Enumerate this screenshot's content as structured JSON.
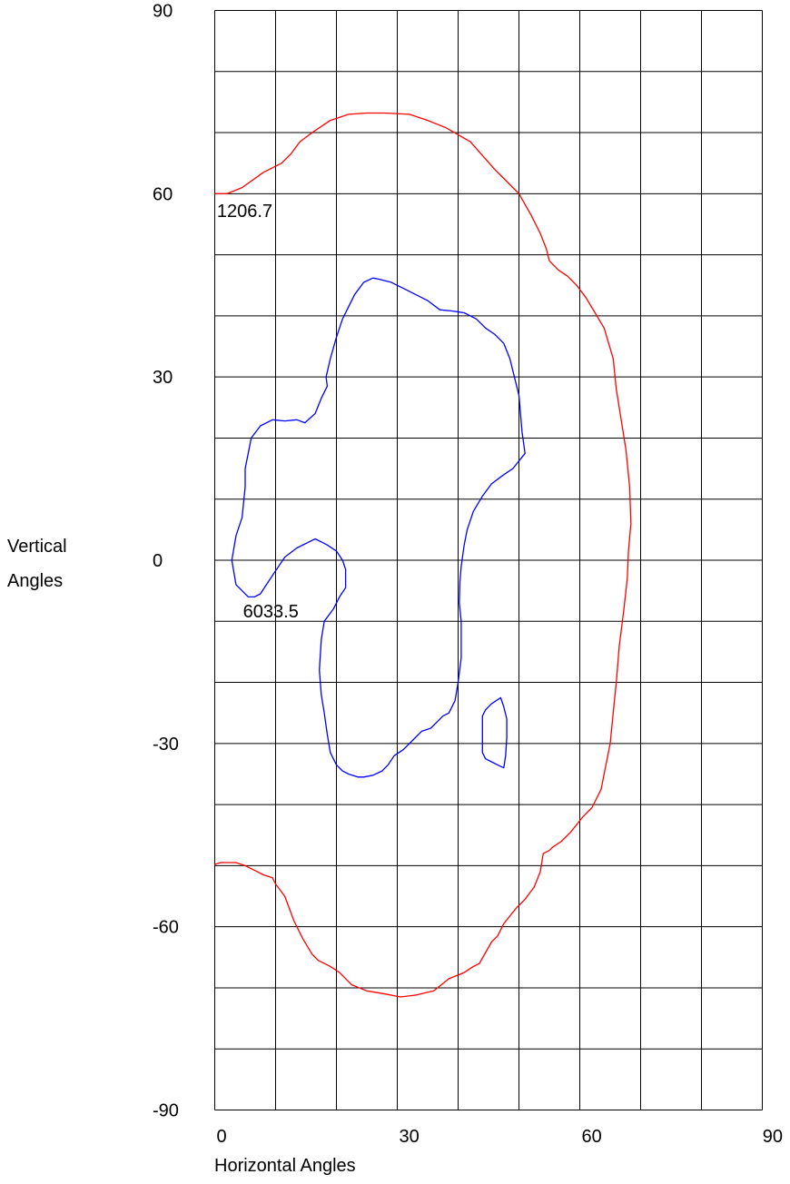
{
  "chart_data": {
    "type": "contour",
    "title": "",
    "xlabel": "Horizontal Angles",
    "ylabel_lines": [
      "Vertical",
      "Angles"
    ],
    "xlim": [
      0,
      90
    ],
    "ylim": [
      -90,
      90
    ],
    "x_ticks": [
      0,
      30,
      60,
      90
    ],
    "y_ticks": [
      90,
      60,
      30,
      0,
      -30,
      -60,
      -90
    ],
    "grid": {
      "on": true,
      "x_step": 10,
      "y_step": 10
    },
    "colors": {
      "grid": "#000000",
      "text": "#000000"
    },
    "series": [
      {
        "label": "1206.7",
        "color": "#ff0000",
        "label_at": [
          0.2,
          57.5
        ],
        "points": [
          [
            0.0,
            60.0
          ],
          [
            2.0,
            60.0
          ],
          [
            4.5,
            61.0
          ],
          [
            8.0,
            63.5
          ],
          [
            11.0,
            65.0
          ],
          [
            12.5,
            66.5
          ],
          [
            14.0,
            68.5
          ],
          [
            16.0,
            70.0
          ],
          [
            19.0,
            72.0
          ],
          [
            22.0,
            73.0
          ],
          [
            25.0,
            73.2
          ],
          [
            28.0,
            73.2
          ],
          [
            32.0,
            73.0
          ],
          [
            35.0,
            72.0
          ],
          [
            38.0,
            70.8
          ],
          [
            42.0,
            68.5
          ],
          [
            46.0,
            64.0
          ],
          [
            47.5,
            62.5
          ],
          [
            50.0,
            60.0
          ],
          [
            52.0,
            56.5
          ],
          [
            53.5,
            53.5
          ],
          [
            54.5,
            51.0
          ],
          [
            55.0,
            49.0
          ],
          [
            56.5,
            47.5
          ],
          [
            58.0,
            46.5
          ],
          [
            59.5,
            45.0
          ],
          [
            61.0,
            43.0
          ],
          [
            62.5,
            40.5
          ],
          [
            64.0,
            38.0
          ],
          [
            65.5,
            33.0
          ],
          [
            66.0,
            28.0
          ],
          [
            66.8,
            23.0
          ],
          [
            67.6,
            18.0
          ],
          [
            68.2,
            12.0
          ],
          [
            68.4,
            6.0
          ],
          [
            68.0,
            1.5
          ],
          [
            67.8,
            -3.0
          ],
          [
            67.2,
            -8.5
          ],
          [
            66.5,
            -14.0
          ],
          [
            66.0,
            -20.0
          ],
          [
            65.5,
            -25.0
          ],
          [
            65.0,
            -30.0
          ],
          [
            64.0,
            -35.0
          ],
          [
            63.5,
            -37.5
          ],
          [
            62.0,
            -40.5
          ],
          [
            60.5,
            -42.0
          ],
          [
            58.5,
            -44.5
          ],
          [
            57.0,
            -46.0
          ],
          [
            55.5,
            -47.0
          ],
          [
            55.0,
            -47.5
          ],
          [
            54.0,
            -48.0
          ],
          [
            53.5,
            -51.0
          ],
          [
            52.5,
            -53.5
          ],
          [
            51.0,
            -55.5
          ],
          [
            49.5,
            -57.0
          ],
          [
            47.5,
            -59.5
          ],
          [
            46.5,
            -61.5
          ],
          [
            45.5,
            -62.5
          ],
          [
            43.5,
            -66.0
          ],
          [
            42.5,
            -66.5
          ],
          [
            41.0,
            -67.5
          ],
          [
            38.5,
            -68.5
          ],
          [
            36.0,
            -70.5
          ],
          [
            33.0,
            -71.2
          ],
          [
            30.5,
            -71.5
          ],
          [
            28.0,
            -71.0
          ],
          [
            25.0,
            -70.5
          ],
          [
            22.5,
            -69.5
          ],
          [
            20.5,
            -67.5
          ],
          [
            19.0,
            -66.5
          ],
          [
            17.0,
            -65.5
          ],
          [
            16.0,
            -64.5
          ],
          [
            14.5,
            -62.0
          ],
          [
            13.0,
            -59.0
          ],
          [
            11.5,
            -55.0
          ],
          [
            10.0,
            -53.0
          ],
          [
            9.5,
            -52.0
          ],
          [
            8.0,
            -51.5
          ],
          [
            7.0,
            -51.0
          ],
          [
            5.0,
            -50.0
          ],
          [
            3.5,
            -49.5
          ],
          [
            2.0,
            -49.5
          ],
          [
            1.0,
            -49.5
          ],
          [
            0.0,
            -49.8
          ]
        ]
      },
      {
        "label": "6033.5",
        "color": "#0000ff",
        "label_at": [
          4.5,
          -8.0
        ],
        "points": [
          [
            4.5,
            -5.0
          ],
          [
            3.5,
            -4.0
          ],
          [
            2.8,
            0.0
          ],
          [
            3.5,
            4.0
          ],
          [
            4.5,
            7.0
          ],
          [
            5.0,
            12.0
          ],
          [
            5.0,
            15.0
          ],
          [
            6.0,
            20.0
          ],
          [
            7.5,
            22.0
          ],
          [
            9.5,
            23.0
          ],
          [
            11.5,
            22.8
          ],
          [
            13.5,
            23.0
          ],
          [
            14.8,
            22.5
          ],
          [
            16.5,
            24.0
          ],
          [
            17.5,
            26.5
          ],
          [
            18.5,
            28.5
          ],
          [
            18.3,
            30.0
          ],
          [
            19.0,
            33.0
          ],
          [
            20.0,
            36.5
          ],
          [
            21.0,
            39.5
          ],
          [
            22.0,
            41.5
          ],
          [
            23.0,
            43.5
          ],
          [
            24.5,
            45.5
          ],
          [
            26.0,
            46.2
          ],
          [
            27.0,
            46.0
          ],
          [
            29.0,
            45.5
          ],
          [
            31.0,
            44.5
          ],
          [
            33.0,
            43.5
          ],
          [
            35.0,
            42.5
          ],
          [
            37.0,
            41.0
          ],
          [
            39.0,
            40.8
          ],
          [
            41.0,
            40.5
          ],
          [
            43.0,
            39.5
          ],
          [
            44.5,
            38.0
          ],
          [
            46.0,
            37.0
          ],
          [
            47.5,
            35.5
          ],
          [
            48.5,
            33.0
          ],
          [
            49.0,
            31.0
          ],
          [
            50.0,
            27.0
          ],
          [
            50.5,
            21.0
          ],
          [
            51.0,
            17.5
          ],
          [
            49.0,
            15.0
          ],
          [
            47.5,
            14.0
          ],
          [
            45.5,
            12.5
          ],
          [
            44.0,
            10.5
          ],
          [
            42.5,
            8.0
          ],
          [
            41.5,
            5.0
          ],
          [
            41.0,
            2.5
          ],
          [
            40.5,
            -1.0
          ],
          [
            40.3,
            -3.5
          ],
          [
            40.2,
            -7.0
          ],
          [
            40.5,
            -10.0
          ],
          [
            40.5,
            -13.0
          ],
          [
            40.5,
            -16.0
          ],
          [
            40.0,
            -20.0
          ],
          [
            39.5,
            -23.0
          ],
          [
            38.5,
            -25.0
          ],
          [
            37.5,
            -25.5
          ],
          [
            36.5,
            -26.5
          ],
          [
            35.5,
            -27.5
          ],
          [
            34.0,
            -28.0
          ],
          [
            32.5,
            -29.5
          ],
          [
            31.0,
            -31.0
          ],
          [
            29.5,
            -32.0
          ],
          [
            28.5,
            -33.5
          ],
          [
            27.5,
            -34.5
          ],
          [
            26.0,
            -35.2
          ],
          [
            24.5,
            -35.5
          ],
          [
            23.5,
            -35.5
          ],
          [
            22.0,
            -35.0
          ],
          [
            21.0,
            -34.5
          ],
          [
            20.0,
            -33.5
          ],
          [
            19.0,
            -31.5
          ],
          [
            18.5,
            -28.5
          ],
          [
            18.0,
            -25.0
          ],
          [
            17.5,
            -22.0
          ],
          [
            17.2,
            -18.0
          ],
          [
            17.5,
            -13.0
          ],
          [
            18.0,
            -10.0
          ],
          [
            19.5,
            -8.0
          ],
          [
            20.5,
            -6.0
          ],
          [
            21.5,
            -4.5
          ],
          [
            21.5,
            -1.5
          ],
          [
            21.0,
            0.0
          ],
          [
            20.0,
            1.5
          ],
          [
            18.5,
            2.5
          ],
          [
            17.5,
            3.0
          ],
          [
            16.5,
            3.5
          ],
          [
            15.5,
            3.0
          ],
          [
            13.5,
            2.0
          ],
          [
            11.5,
            0.5
          ],
          [
            10.5,
            -1.0
          ],
          [
            9.5,
            -2.5
          ],
          [
            8.5,
            -4.0
          ],
          [
            7.5,
            -5.5
          ],
          [
            6.5,
            -6.0
          ],
          [
            5.5,
            -6.0
          ],
          [
            4.5,
            -5.0
          ]
        ]
      },
      {
        "label": "",
        "color": "#0000ff",
        "points": [
          [
            44.5,
            -24.5
          ],
          [
            45.5,
            -23.5
          ],
          [
            47.0,
            -22.5
          ],
          [
            47.5,
            -24.0
          ],
          [
            48.0,
            -26.0
          ],
          [
            48.0,
            -29.0
          ],
          [
            47.8,
            -32.0
          ],
          [
            47.5,
            -34.0
          ],
          [
            46.5,
            -33.5
          ],
          [
            45.5,
            -33.0
          ],
          [
            44.5,
            -32.5
          ],
          [
            44.0,
            -31.5
          ],
          [
            44.0,
            -28.5
          ],
          [
            44.0,
            -25.5
          ],
          [
            44.5,
            -24.5
          ]
        ]
      }
    ]
  }
}
